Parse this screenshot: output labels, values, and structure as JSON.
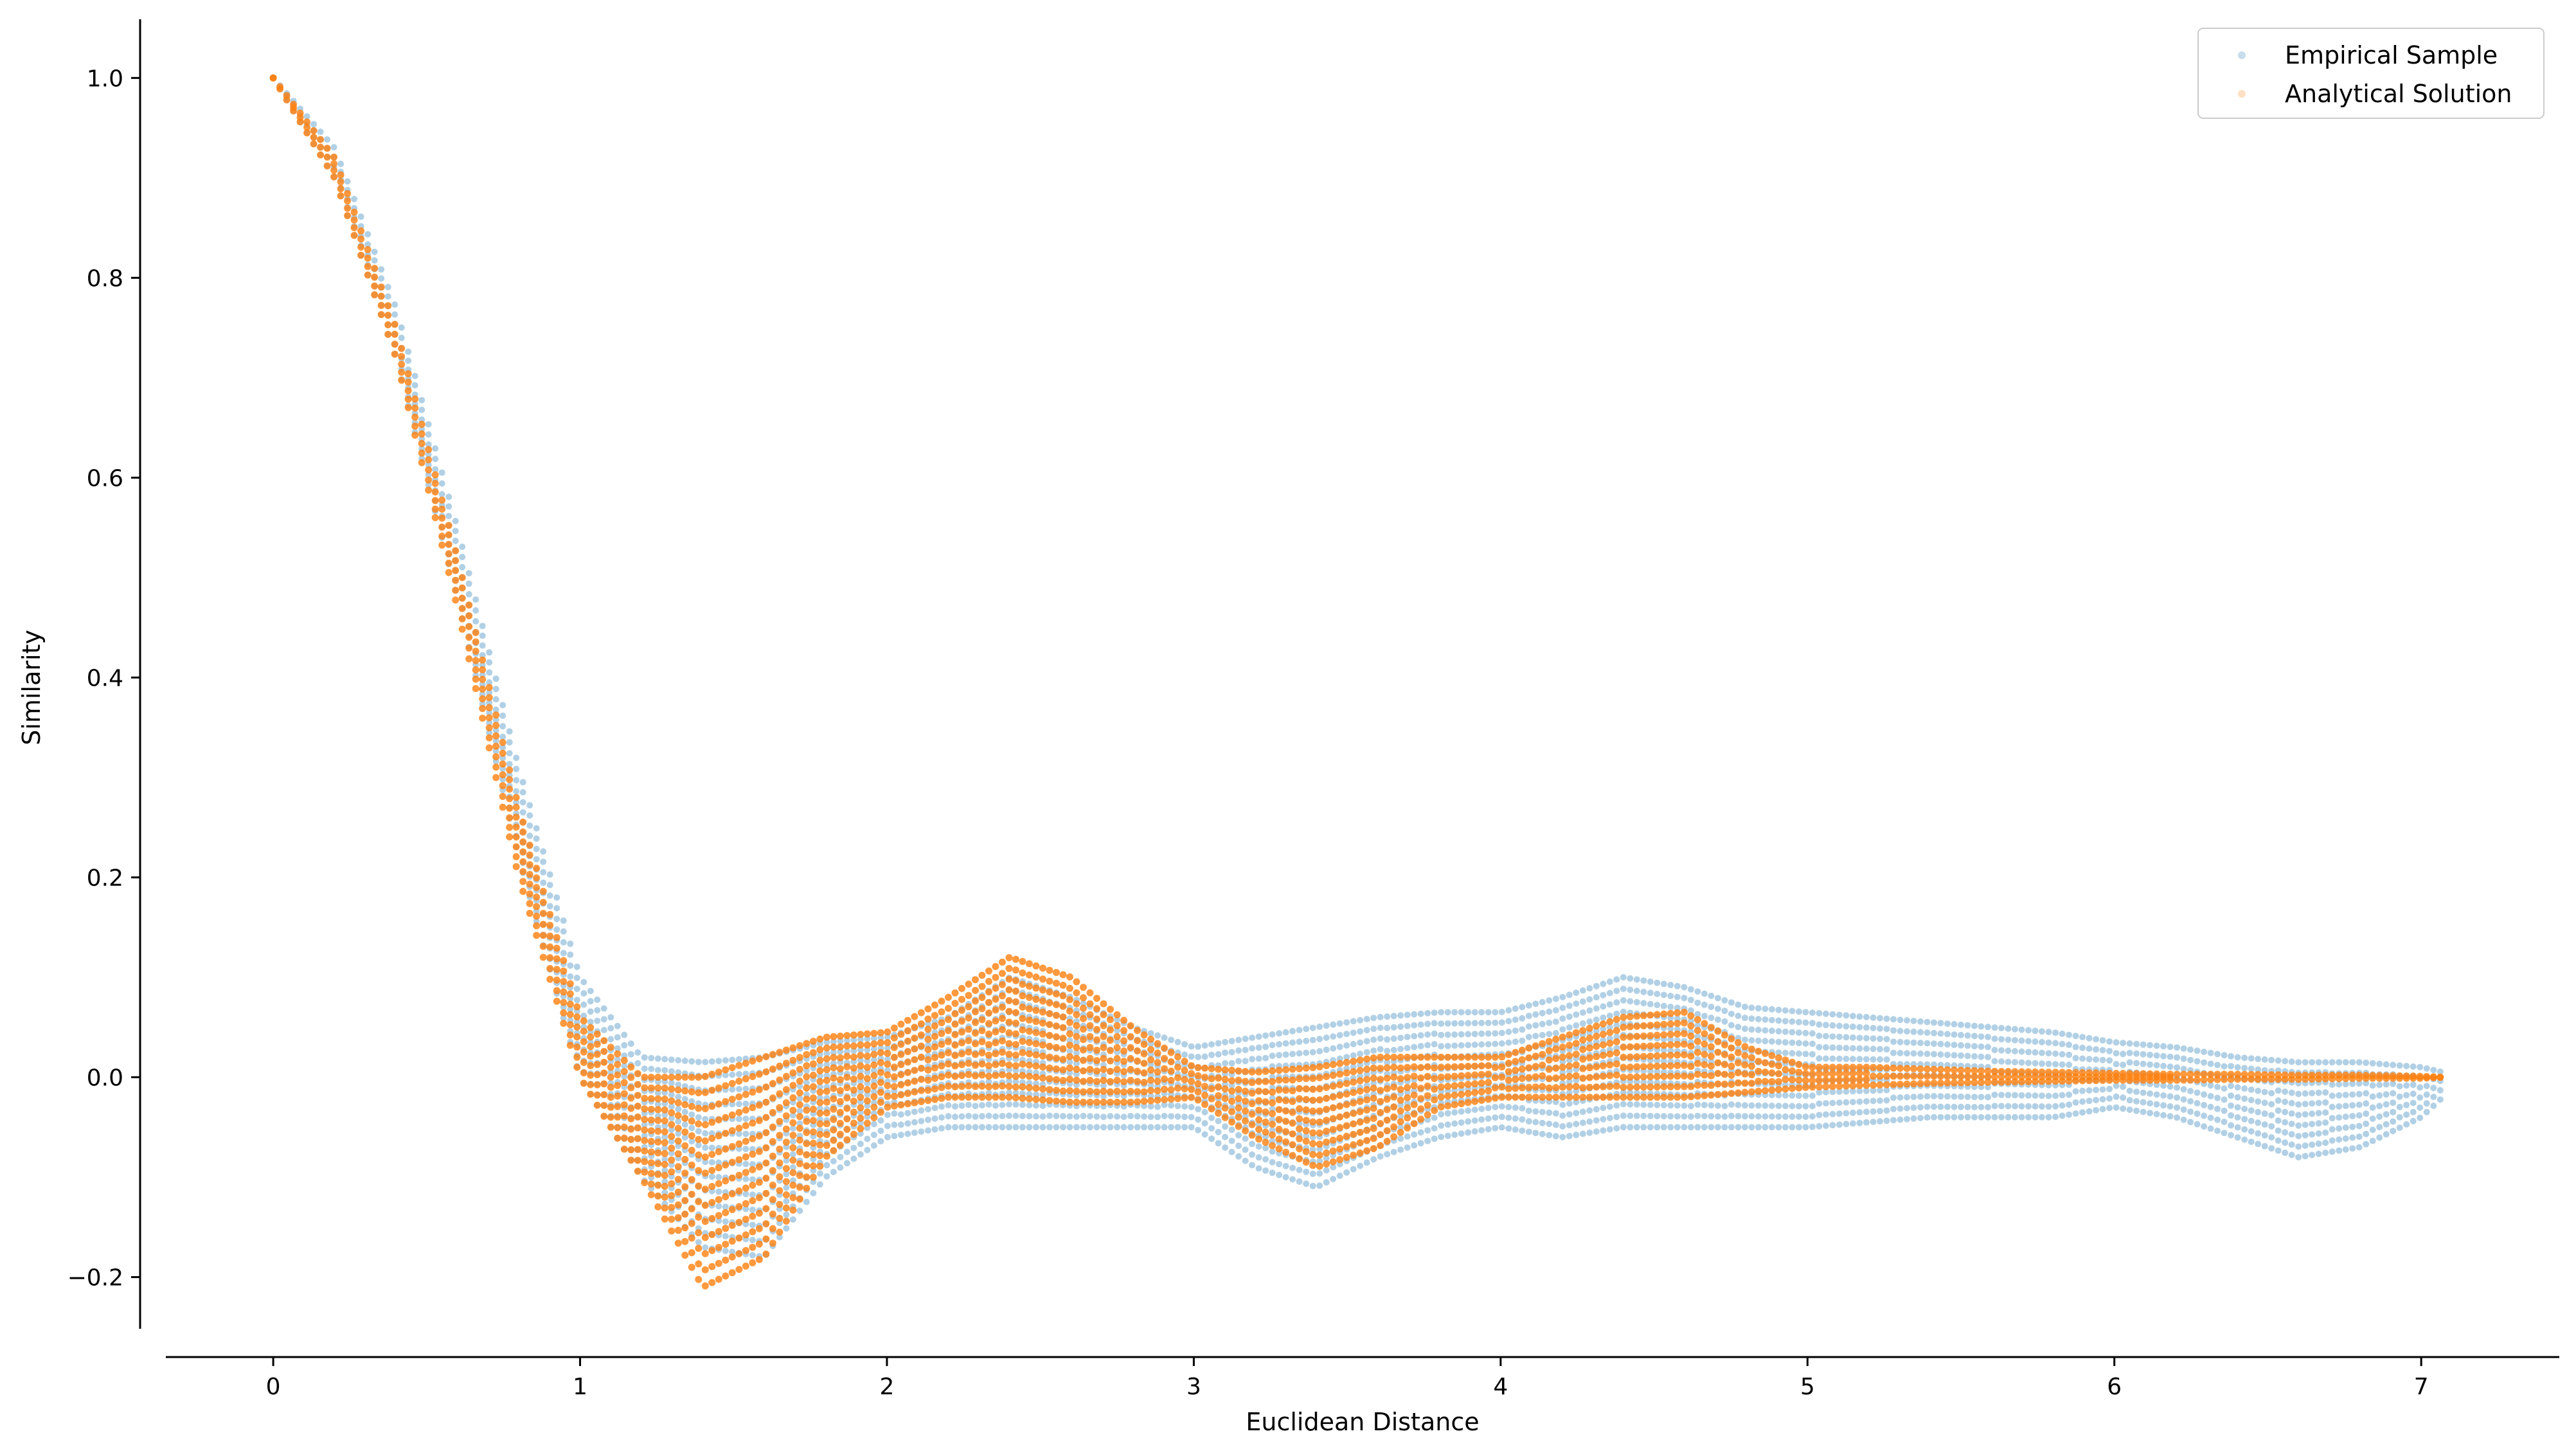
{
  "chart_data": {
    "type": "scatter",
    "title": "",
    "xlabel": "Euclidean Distance",
    "ylabel": "Similarity",
    "xlim": [
      -0.35,
      7.45
    ],
    "ylim": [
      -0.28,
      1.06
    ],
    "xticks": [
      0,
      1,
      2,
      3,
      4,
      5,
      6,
      7
    ],
    "xtick_labels": [
      "0",
      "1",
      "2",
      "3",
      "4",
      "5",
      "6",
      "7"
    ],
    "yticks": [
      -0.2,
      0.0,
      0.2,
      0.4,
      0.6,
      0.8,
      1.0
    ],
    "ytick_labels": [
      "−0.2",
      "0.0",
      "0.2",
      "0.4",
      "0.6",
      "0.8",
      "1.0"
    ],
    "grid": false,
    "legend": "top-right",
    "series": [
      {
        "name": "Empirical Sample",
        "color": "#1f77b4",
        "marker_alpha": 0.35,
        "envelope": {
          "x": [
            0.0,
            0.2,
            0.4,
            0.6,
            0.8,
            1.0,
            1.2,
            1.4,
            1.6,
            1.8,
            2.0,
            2.2,
            2.4,
            2.6,
            2.8,
            3.0,
            3.2,
            3.4,
            3.6,
            3.8,
            4.0,
            4.2,
            4.4,
            4.6,
            4.8,
            5.0,
            5.2,
            5.4,
            5.6,
            5.8,
            6.0,
            6.2,
            6.4,
            6.6,
            6.8,
            7.0,
            7.07
          ],
          "upper": [
            1.0,
            0.93,
            0.77,
            0.55,
            0.31,
            0.1,
            0.02,
            0.015,
            0.02,
            0.035,
            0.04,
            0.06,
            0.1,
            0.08,
            0.05,
            0.03,
            0.04,
            0.05,
            0.06,
            0.065,
            0.065,
            0.08,
            0.1,
            0.09,
            0.07,
            0.065,
            0.06,
            0.055,
            0.05,
            0.045,
            0.035,
            0.03,
            0.02,
            0.015,
            0.015,
            0.01,
            0.005
          ],
          "lower": [
            1.0,
            0.9,
            0.72,
            0.48,
            0.22,
            0.0,
            -0.1,
            -0.17,
            -0.18,
            -0.1,
            -0.06,
            -0.05,
            -0.05,
            -0.05,
            -0.05,
            -0.05,
            -0.09,
            -0.11,
            -0.08,
            -0.06,
            -0.05,
            -0.06,
            -0.05,
            -0.05,
            -0.05,
            -0.05,
            -0.045,
            -0.04,
            -0.04,
            -0.04,
            -0.03,
            -0.04,
            -0.06,
            -0.08,
            -0.07,
            -0.04,
            -0.02
          ]
        }
      },
      {
        "name": "Analytical Solution",
        "color": "#ff7f0e",
        "marker_alpha": 0.8,
        "envelope": {
          "x": [
            0.0,
            0.2,
            0.4,
            0.6,
            0.8,
            1.0,
            1.2,
            1.4,
            1.6,
            1.8,
            2.0,
            2.2,
            2.4,
            2.6,
            2.8,
            3.0,
            3.2,
            3.4,
            3.6,
            3.8,
            4.0,
            4.2,
            4.4,
            4.6,
            4.8,
            5.0,
            5.2,
            5.4,
            5.6,
            5.8,
            6.0,
            6.2,
            6.4,
            6.6,
            6.8,
            7.0,
            7.07
          ],
          "upper": [
            1.0,
            0.92,
            0.75,
            0.52,
            0.27,
            0.06,
            0.0,
            0.0,
            0.02,
            0.04,
            0.045,
            0.08,
            0.12,
            0.1,
            0.05,
            0.01,
            0.005,
            0.01,
            0.02,
            0.02,
            0.02,
            0.04,
            0.06,
            0.065,
            0.03,
            0.01,
            0.01,
            0.008,
            0.006,
            0.005,
            0.004,
            0.003,
            0.003,
            0.002,
            0.002,
            0.001,
            0.0
          ],
          "lower": [
            1.0,
            0.9,
            0.72,
            0.47,
            0.2,
            0.0,
            -0.1,
            -0.21,
            -0.18,
            -0.08,
            -0.03,
            -0.02,
            -0.02,
            -0.025,
            -0.025,
            -0.02,
            -0.06,
            -0.09,
            -0.07,
            -0.03,
            -0.02,
            -0.02,
            -0.02,
            -0.02,
            -0.015,
            -0.01,
            -0.008,
            -0.006,
            -0.005,
            -0.004,
            -0.003,
            -0.003,
            -0.002,
            -0.002,
            -0.001,
            -0.001,
            0.0
          ]
        }
      }
    ]
  }
}
